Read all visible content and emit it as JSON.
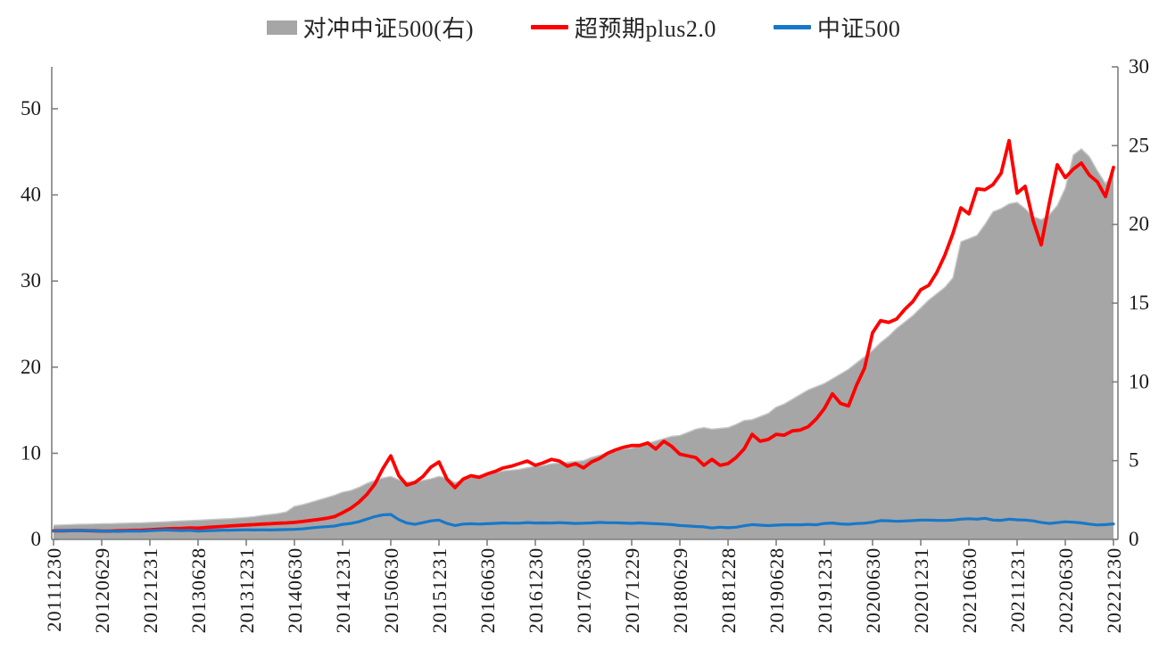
{
  "legend": {
    "items": [
      {
        "label": "对冲中证500(右)",
        "swatch": "area",
        "color": "#a6a6a6"
      },
      {
        "label": "超预期plus2.0",
        "swatch": "line",
        "color": "#ff0000"
      },
      {
        "label": "中证500",
        "swatch": "line",
        "color": "#1878c8"
      }
    ]
  },
  "style": {
    "axis_color": "#7f7f7f",
    "tick_label_color": "#1a1a1a",
    "area_edge_color": "#c9c9c9",
    "background": "#ffffff"
  },
  "chart_data": {
    "type": "area",
    "subtype": "combo area + two lines, dual y-axis",
    "title": "",
    "x_frequency": "monthly",
    "x_start": "2011-12",
    "x_end": "2022-12",
    "x_tick_labels": [
      "20111230",
      "20120629",
      "20121231",
      "20130628",
      "20131231",
      "20140630",
      "20141231",
      "20150630",
      "20151231",
      "20160630",
      "20161230",
      "20170630",
      "20171229",
      "20180629",
      "20181228",
      "20190628",
      "20191231",
      "20200630",
      "20201231",
      "20210630",
      "20211231",
      "20220630",
      "20221230"
    ],
    "left_axis": {
      "range": [
        0,
        55
      ],
      "ticks": [
        0,
        10,
        20,
        30,
        40,
        50
      ]
    },
    "right_axis": {
      "range": [
        0,
        30
      ],
      "ticks": [
        0,
        5,
        10,
        15,
        20,
        25,
        30
      ]
    },
    "grid": false,
    "legend_position": "top",
    "series": [
      {
        "name": "对冲中证500(右)",
        "type": "area",
        "axis": "right",
        "color": "#a6a6a6",
        "values": [
          0.9,
          0.92,
          0.94,
          0.96,
          0.97,
          0.98,
          1.0,
          1.0,
          1.02,
          1.03,
          1.05,
          1.06,
          1.08,
          1.1,
          1.12,
          1.15,
          1.18,
          1.2,
          1.22,
          1.25,
          1.28,
          1.3,
          1.32,
          1.36,
          1.4,
          1.45,
          1.52,
          1.58,
          1.65,
          1.75,
          2.1,
          2.2,
          2.35,
          2.5,
          2.65,
          2.8,
          3.0,
          3.1,
          3.3,
          3.55,
          3.75,
          3.9,
          4.0,
          3.8,
          3.65,
          3.7,
          3.75,
          3.85,
          4.0,
          3.9,
          3.6,
          3.8,
          3.95,
          4.05,
          4.15,
          4.25,
          4.35,
          4.4,
          4.45,
          4.55,
          4.65,
          4.7,
          4.8,
          4.85,
          4.9,
          4.95,
          5.0,
          5.2,
          5.35,
          5.5,
          5.65,
          5.75,
          5.8,
          5.95,
          6.1,
          6.25,
          6.4,
          6.55,
          6.6,
          6.8,
          7.0,
          7.1,
          7.0,
          7.05,
          7.1,
          7.3,
          7.55,
          7.6,
          7.8,
          8.0,
          8.4,
          8.6,
          8.9,
          9.2,
          9.5,
          9.7,
          9.9,
          10.2,
          10.5,
          10.8,
          11.2,
          11.6,
          12.0,
          12.5,
          12.9,
          13.4,
          13.8,
          14.2,
          14.7,
          15.2,
          15.6,
          16.0,
          16.6,
          18.9,
          19.1,
          19.3,
          20.0,
          20.8,
          21.0,
          21.3,
          21.4,
          21.0,
          20.5,
          20.3,
          20.6,
          21.2,
          22.3,
          24.4,
          24.8,
          24.3,
          23.4,
          22.6,
          23.3
        ]
      },
      {
        "name": "超预期plus2.0",
        "type": "line",
        "axis": "left",
        "color": "#ff0000",
        "values": [
          1.0,
          1.0,
          1.02,
          1.05,
          1.03,
          1.0,
          0.97,
          0.96,
          1.0,
          1.03,
          1.06,
          1.08,
          1.12,
          1.18,
          1.22,
          1.26,
          1.28,
          1.32,
          1.3,
          1.38,
          1.45,
          1.5,
          1.56,
          1.62,
          1.68,
          1.72,
          1.78,
          1.82,
          1.88,
          1.92,
          1.98,
          2.08,
          2.2,
          2.32,
          2.45,
          2.65,
          3.1,
          3.6,
          4.3,
          5.2,
          6.4,
          8.2,
          9.7,
          7.4,
          6.3,
          6.6,
          7.3,
          8.4,
          9.0,
          7.0,
          6.0,
          7.0,
          7.4,
          7.2,
          7.6,
          7.9,
          8.3,
          8.5,
          8.8,
          9.1,
          8.6,
          8.9,
          9.3,
          9.1,
          8.5,
          8.8,
          8.3,
          9.0,
          9.4,
          10.0,
          10.4,
          10.7,
          10.9,
          10.9,
          11.2,
          10.5,
          11.4,
          10.8,
          9.9,
          9.7,
          9.5,
          8.6,
          9.3,
          8.6,
          8.8,
          9.5,
          10.5,
          12.2,
          11.4,
          11.6,
          12.2,
          12.1,
          12.6,
          12.7,
          13.1,
          14.0,
          15.2,
          16.9,
          15.8,
          15.5,
          17.9,
          19.9,
          24.0,
          25.4,
          25.2,
          25.6,
          26.7,
          27.6,
          29.0,
          29.5,
          31.0,
          33.0,
          35.5,
          38.5,
          37.8,
          40.7,
          40.6,
          41.2,
          42.5,
          46.3,
          40.2,
          41.0,
          37.0,
          34.2,
          39.0,
          43.5,
          42.0,
          43.0,
          43.7,
          42.3,
          41.5,
          39.8,
          43.2
        ]
      },
      {
        "name": "中证500",
        "type": "line",
        "axis": "left",
        "color": "#1878c8",
        "values": [
          1.0,
          1.0,
          1.03,
          1.06,
          1.04,
          1.0,
          0.97,
          0.95,
          0.93,
          0.96,
          0.98,
          0.96,
          1.02,
          1.06,
          1.1,
          1.06,
          1.03,
          1.06,
          0.96,
          1.0,
          1.04,
          1.08,
          1.07,
          1.1,
          1.12,
          1.1,
          1.12,
          1.1,
          1.13,
          1.15,
          1.17,
          1.22,
          1.32,
          1.42,
          1.48,
          1.55,
          1.75,
          1.85,
          2.05,
          2.35,
          2.65,
          2.85,
          2.9,
          2.3,
          1.9,
          1.75,
          1.95,
          2.15,
          2.25,
          1.85,
          1.62,
          1.78,
          1.82,
          1.78,
          1.82,
          1.86,
          1.92,
          1.88,
          1.88,
          1.96,
          1.9,
          1.92,
          1.9,
          1.95,
          1.9,
          1.85,
          1.88,
          1.92,
          1.98,
          1.94,
          1.94,
          1.9,
          1.86,
          1.92,
          1.86,
          1.82,
          1.78,
          1.72,
          1.62,
          1.56,
          1.5,
          1.46,
          1.32,
          1.42,
          1.36,
          1.42,
          1.58,
          1.72,
          1.66,
          1.6,
          1.66,
          1.7,
          1.7,
          1.7,
          1.74,
          1.7,
          1.85,
          1.9,
          1.8,
          1.76,
          1.84,
          1.88,
          2.0,
          2.18,
          2.16,
          2.1,
          2.14,
          2.18,
          2.25,
          2.25,
          2.22,
          2.2,
          2.25,
          2.35,
          2.4,
          2.35,
          2.45,
          2.25,
          2.22,
          2.35,
          2.28,
          2.25,
          2.15,
          1.98,
          1.85,
          1.95,
          2.05,
          2.0,
          1.92,
          1.78,
          1.68,
          1.72,
          1.8
        ]
      }
    ]
  }
}
